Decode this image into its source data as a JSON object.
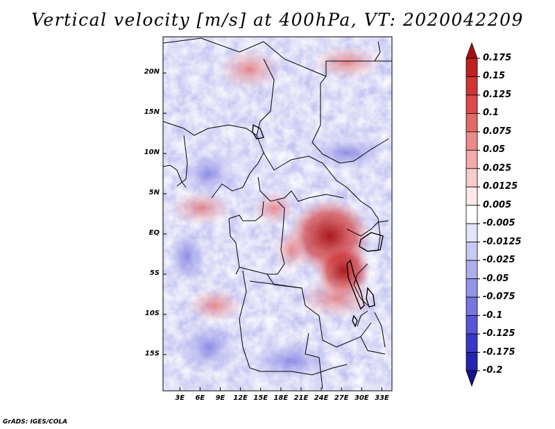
{
  "title": "Vertical velocity [m/s] at 400hPa, VT: 2020042209",
  "credit": "GrADS: IGES/COLA",
  "map": {
    "variable": "Vertical velocity",
    "units": "m/s",
    "level": "400hPa",
    "valid_time": "2020042209",
    "lat_labels": [
      "20N",
      "15N",
      "10N",
      "5N",
      "EQ",
      "5S",
      "10S",
      "15S"
    ],
    "lat_values": [
      20,
      15,
      10,
      5,
      0,
      -5,
      -10,
      -15
    ],
    "lon_labels": [
      "3E",
      "6E",
      "9E",
      "12E",
      "15E",
      "18E",
      "21E",
      "24E",
      "27E",
      "30E",
      "33E"
    ],
    "lon_values": [
      3,
      6,
      9,
      12,
      15,
      18,
      21,
      24,
      27,
      30,
      33
    ],
    "lat_range": [
      -19.5,
      24.5
    ],
    "lon_range": [
      0.5,
      34.5
    ]
  },
  "colorbar": {
    "labels": [
      "0.175",
      "0.15",
      "0.125",
      "0.1",
      "0.075",
      "0.05",
      "0.025",
      "0.0125",
      "0.005",
      "-0.005",
      "-0.0125",
      "-0.025",
      "-0.05",
      "-0.075",
      "-0.1",
      "-0.125",
      "-0.175",
      "-0.2"
    ],
    "colors": [
      "#a81010",
      "#c02020",
      "#d03535",
      "#dd4a4a",
      "#e46868",
      "#ec8a8a",
      "#f3aaaa",
      "#f8cccc",
      "#fce8e8",
      "#ffffff",
      "#e4e4fa",
      "#c8c8f4",
      "#aeaeee",
      "#9494e8",
      "#7676e0",
      "#5656d6",
      "#3838c8",
      "#2424b0",
      "#14148c"
    ]
  },
  "colors": {
    "land_red": "#b82020",
    "land_blue": "#2e2ec8",
    "border": "#000000"
  }
}
